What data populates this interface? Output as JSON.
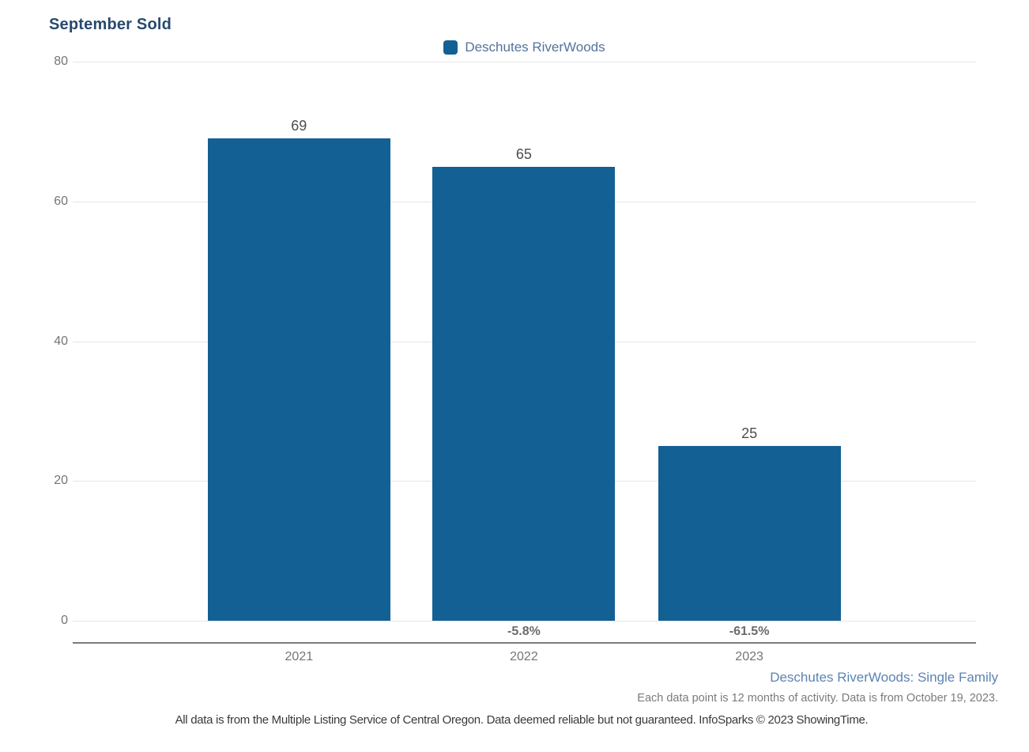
{
  "chart_data": {
    "type": "bar",
    "title": "September Sold",
    "categories": [
      "2021",
      "2022",
      "2023"
    ],
    "series": [
      {
        "name": "Deschutes RiverWoods",
        "values": [
          69,
          65,
          25
        ]
      }
    ],
    "value_labels": [
      "69",
      "65",
      "25"
    ],
    "change_labels": [
      "",
      "-5.8%",
      "-61.5%"
    ],
    "ylim": [
      0,
      80
    ],
    "yticks": [
      80,
      60,
      40,
      20,
      0
    ],
    "grid": true,
    "legend": {
      "label": "Deschutes RiverWoods",
      "position": "top-center",
      "swatch_color": "#136094"
    },
    "bar_color": "#136094"
  },
  "footer": {
    "series_note": "Deschutes RiverWoods: Single Family",
    "data_note": "Each data point is 12 months of activity. Data is from October 19, 2023.",
    "disclaimer": "All data is from the Multiple Listing Service of Central Oregon. Data deemed reliable but not guaranteed. InfoSparks © 2023 ShowingTime."
  },
  "colors": {
    "bar": "#136094",
    "title": "#27496e",
    "legend_text": "#52749b",
    "axis_label": "#757575",
    "value_label": "#4d4d4d",
    "pct_label": "#6b6b6b",
    "gridline": "#e6e6e6",
    "axis_line": "#7a7a7a",
    "footer_link": "#5d83b2"
  }
}
